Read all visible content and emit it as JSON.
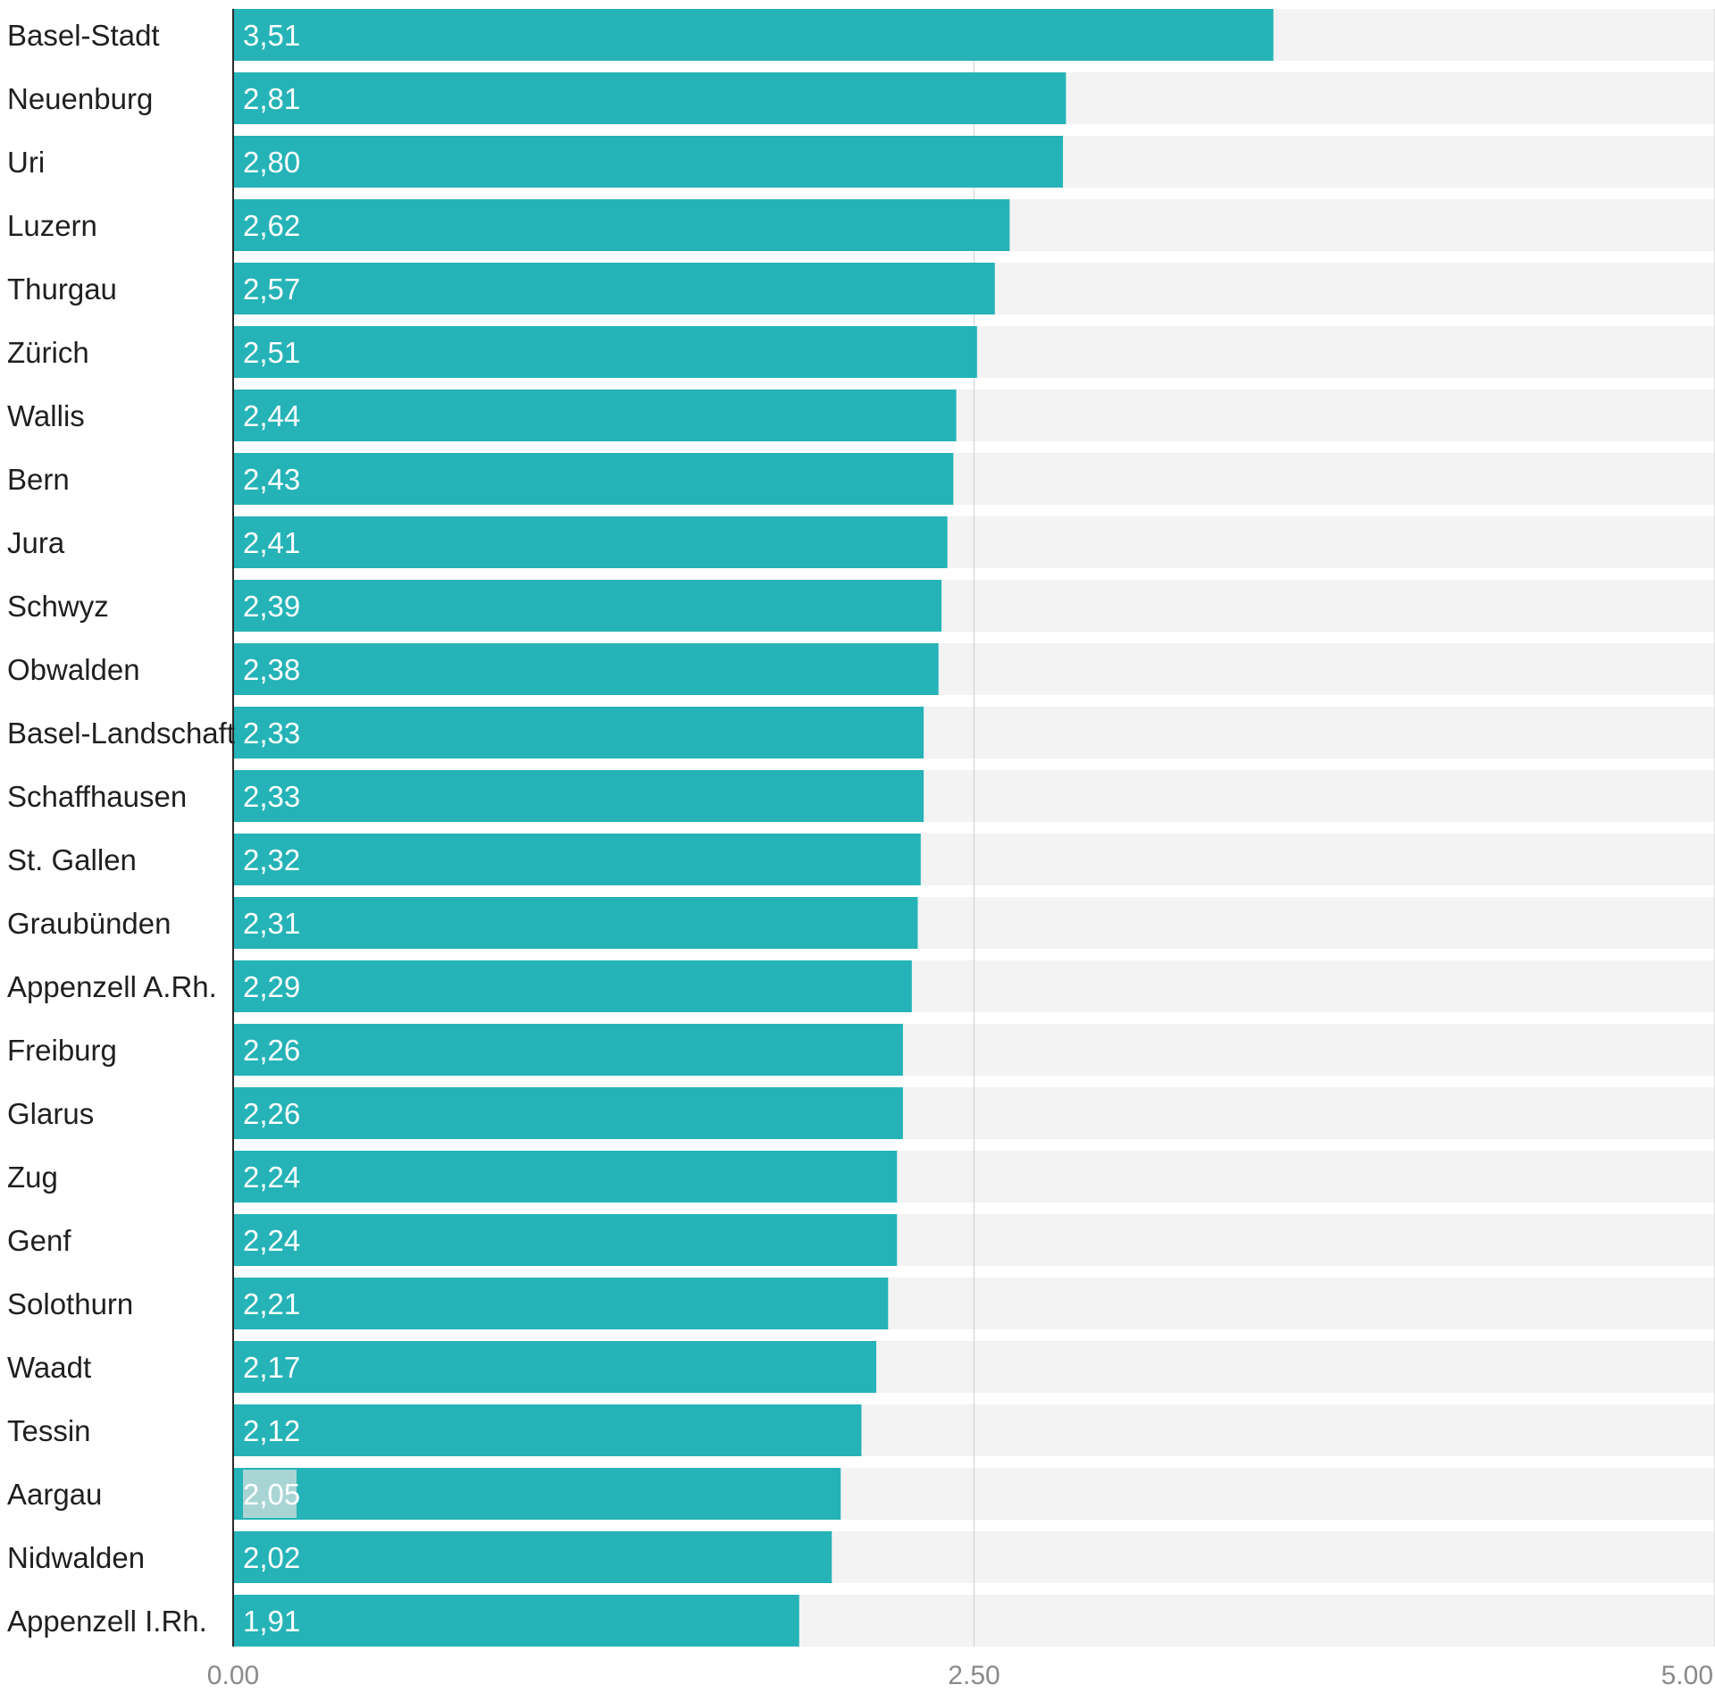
{
  "chart_data": {
    "type": "bar",
    "orientation": "horizontal",
    "categories": [
      "Basel-Stadt",
      "Neuenburg",
      "Uri",
      "Luzern",
      "Thurgau",
      "Zürich",
      "Wallis",
      "Bern",
      "Jura",
      "Schwyz",
      "Obwalden",
      "Basel-Landschaft",
      "Schaffhausen",
      "St. Gallen",
      "Graubünden",
      "Appenzell A.Rh.",
      "Freiburg",
      "Glarus",
      "Zug",
      "Genf",
      "Solothurn",
      "Waadt",
      "Tessin",
      "Aargau",
      "Nidwalden",
      "Appenzell I.Rh."
    ],
    "values": [
      3.51,
      2.81,
      2.8,
      2.62,
      2.57,
      2.51,
      2.44,
      2.43,
      2.41,
      2.39,
      2.38,
      2.33,
      2.33,
      2.32,
      2.31,
      2.29,
      2.26,
      2.26,
      2.24,
      2.24,
      2.21,
      2.17,
      2.12,
      2.05,
      2.02,
      1.91
    ],
    "value_labels": [
      "3,51",
      "2,81",
      "2,80",
      "2,62",
      "2,57",
      "2,51",
      "2,44",
      "2,43",
      "2,41",
      "2,39",
      "2,38",
      "2,33",
      "2,33",
      "2,32",
      "2,31",
      "2,29",
      "2,26",
      "2,26",
      "2,24",
      "2,24",
      "2,21",
      "2,17",
      "2,12",
      "2,05",
      "2,02",
      "1,91"
    ],
    "highlighted_category": "Aargau",
    "xlim": [
      0,
      5
    ],
    "x_ticks": [
      0,
      2.5,
      5
    ],
    "x_tick_labels": [
      "0.00",
      "2.50",
      "5.00"
    ],
    "grid": true,
    "legend": "none",
    "colors": {
      "bar": "#25b3b7",
      "track": "#f3f3f3",
      "gridline": "#d9d9d9",
      "axis": "#2b2b2b",
      "highlight_label_bg": "#a8d5d3",
      "highlight_label_text": "#e8f6f5"
    }
  }
}
